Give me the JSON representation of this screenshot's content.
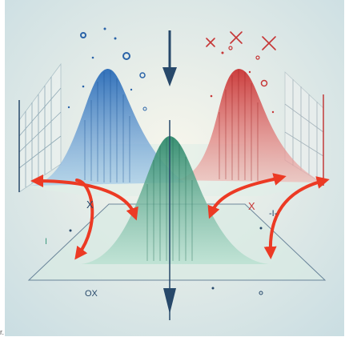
{
  "colors": {
    "blue": "#2f78c4",
    "red": "#d23a3a",
    "green": "#3f9a7e",
    "arrow_dark": "#27486a",
    "arrow_red": "#ec3a24",
    "background": "#e9f1ee"
  },
  "labels": {
    "ox": "OX",
    "x_left": "X",
    "x_right": "X",
    "dash_mark": "-I-",
    "left_i": "I",
    "stray_mark": "r."
  }
}
